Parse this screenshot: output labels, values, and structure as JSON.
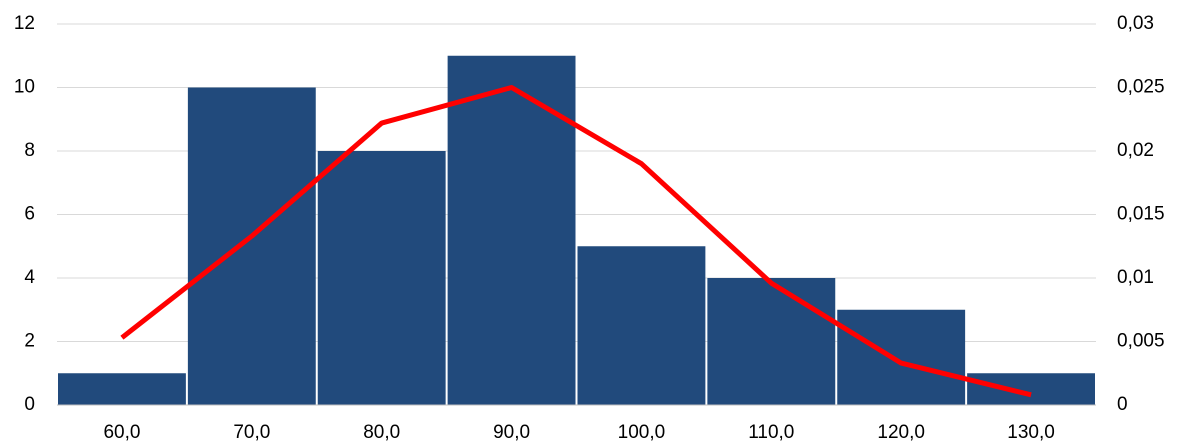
{
  "chart_data": {
    "type": "bar",
    "categories": [
      "60,0",
      "70,0",
      "80,0",
      "90,0",
      "100,0",
      "110,0",
      "120,0",
      "130,0"
    ],
    "series": [
      {
        "type": "bar",
        "color": "#214a7c",
        "values": [
          1,
          10,
          8,
          11,
          5,
          4,
          3,
          1
        ]
      },
      {
        "type": "line",
        "axis": "y2",
        "color": "#ff0000",
        "values": [
          0.0053,
          0.0133,
          0.0222,
          0.025,
          0.019,
          0.0096,
          0.0033,
          0.0008
        ]
      }
    ],
    "ylim": [
      0,
      12
    ],
    "yticks": [
      0,
      2,
      4,
      6,
      8,
      10,
      12
    ],
    "y2lim": [
      0,
      0.03
    ],
    "y2ticks": [
      0,
      {
        "value": 0.005,
        "label": "0,005"
      },
      {
        "value": 0.01,
        "label": "0,01"
      },
      {
        "value": 0.015,
        "label": "0,015"
      },
      {
        "value": 0.02,
        "label": "0,02"
      },
      {
        "value": 0.025,
        "label": "0,025"
      },
      {
        "value": 0.03,
        "label": "0,03"
      }
    ],
    "grid": true
  }
}
